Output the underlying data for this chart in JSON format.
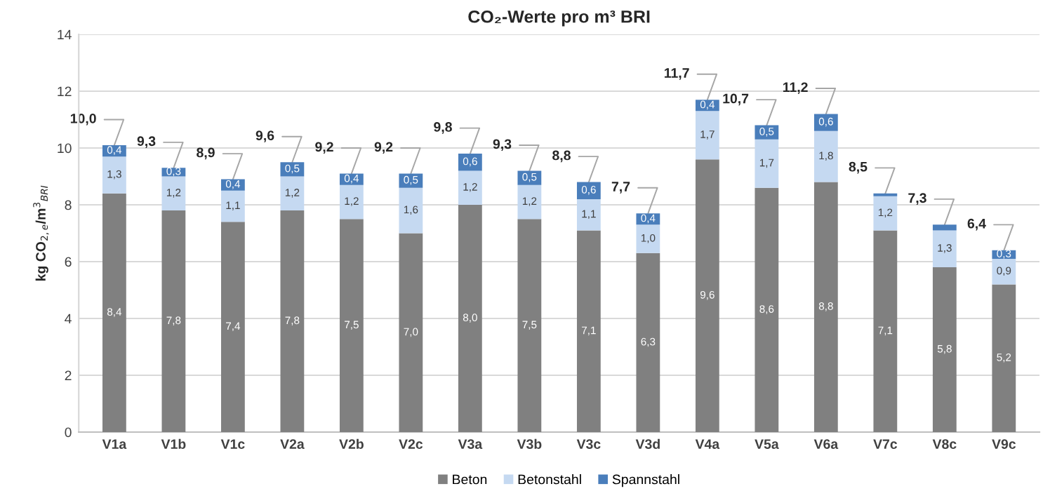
{
  "chart_data": {
    "type": "bar",
    "stacked": true,
    "title": "CO₂-Werte pro m³ BRI",
    "ylabel": "kg CO$_{2,e}$/m$^{3}$$_{BRI}$",
    "categories": [
      "V1a",
      "V1b",
      "V1c",
      "V2a",
      "V2b",
      "V2c",
      "V3a",
      "V3b",
      "V3c",
      "V3d",
      "V4a",
      "V5a",
      "V6a",
      "V7c",
      "V8c",
      "V9c"
    ],
    "series": [
      {
        "name": "Beton",
        "color": "#808080",
        "values": [
          8.4,
          7.8,
          7.4,
          7.8,
          7.5,
          7.0,
          8.0,
          7.5,
          7.1,
          6.3,
          9.6,
          8.6,
          8.8,
          7.1,
          5.8,
          5.2
        ],
        "value_labels": [
          "8,4",
          "7,8",
          "7,4",
          "7,8",
          "7,5",
          "7,0",
          "8,0",
          "7,5",
          "7,1",
          "6,3",
          "9,6",
          "8,6",
          "8,8",
          "7,1",
          "5,8",
          "5,2"
        ]
      },
      {
        "name": "Betonstahl",
        "color": "#c5d9f1",
        "values": [
          1.3,
          1.2,
          1.1,
          1.2,
          1.2,
          1.6,
          1.2,
          1.2,
          1.1,
          1.0,
          1.7,
          1.7,
          1.8,
          1.2,
          1.3,
          0.9
        ],
        "value_labels": [
          "1,3",
          "1,2",
          "1,1",
          "1,2",
          "1,2",
          "1,6",
          "1,2",
          "1,2",
          "1,1",
          "1,0",
          "1,7",
          "1,7",
          "1,8",
          "1,2",
          "1,3",
          "0,9"
        ]
      },
      {
        "name": "Spannstahl",
        "color": "#4a7ebb",
        "values": [
          0.4,
          0.3,
          0.4,
          0.5,
          0.4,
          0.5,
          0.6,
          0.5,
          0.6,
          0.4,
          0.4,
          0.5,
          0.6,
          0.1,
          0.2,
          0.3
        ],
        "value_labels": [
          "0,4",
          "0,3",
          "0,4",
          "0,5",
          "0,4",
          "0,5",
          "0,6",
          "0,5",
          "0,6",
          "0,4",
          "0,4",
          "0,5",
          "0,6",
          null,
          null,
          "0,3"
        ]
      }
    ],
    "totals": [
      "10,0",
      "9,3",
      "8,9",
      "9,6",
      "9,2",
      "9,2",
      "9,8",
      "9,3",
      "8,8",
      "7,7",
      "11,7",
      "10,7",
      "11,2",
      "8,5",
      "7,3",
      "6,4"
    ],
    "ylim": [
      0,
      14
    ],
    "yticks": [
      0,
      2,
      4,
      6,
      8,
      10,
      12,
      14
    ],
    "grid": "y",
    "legend": "bottom"
  }
}
